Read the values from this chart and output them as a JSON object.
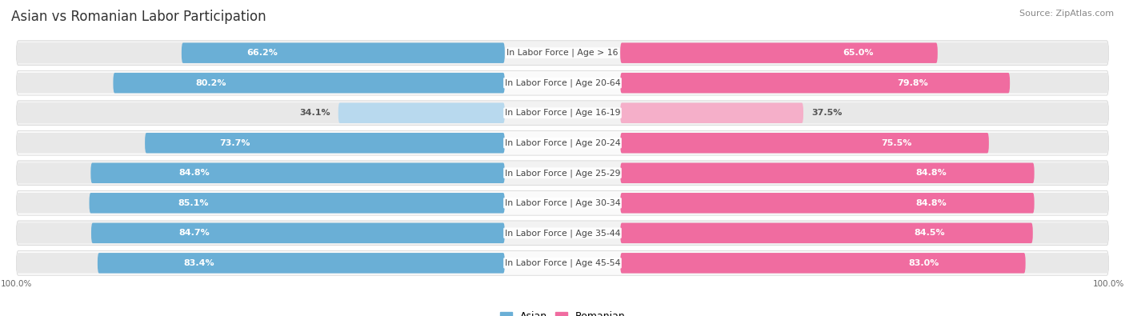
{
  "title": "Asian vs Romanian Labor Participation",
  "source": "Source: ZipAtlas.com",
  "categories": [
    "In Labor Force | Age > 16",
    "In Labor Force | Age 20-64",
    "In Labor Force | Age 16-19",
    "In Labor Force | Age 20-24",
    "In Labor Force | Age 25-29",
    "In Labor Force | Age 30-34",
    "In Labor Force | Age 35-44",
    "In Labor Force | Age 45-54"
  ],
  "asian_values": [
    66.2,
    80.2,
    34.1,
    73.7,
    84.8,
    85.1,
    84.7,
    83.4
  ],
  "romanian_values": [
    65.0,
    79.8,
    37.5,
    75.5,
    84.8,
    84.8,
    84.5,
    83.0
  ],
  "asian_color_strong": "#6aafd6",
  "asian_color_light": "#b8d9ee",
  "romanian_color_strong": "#f06ca0",
  "romanian_color_light": "#f5afc9",
  "track_color": "#e8e8e8",
  "row_bg_odd": "#f2f2f2",
  "row_bg_even": "#fafafa",
  "max_value": 100.0,
  "bar_height": 0.68,
  "title_fontsize": 12,
  "label_fontsize": 8.0,
  "category_fontsize": 7.8,
  "legend_fontsize": 9,
  "source_fontsize": 8,
  "threshold_light": 45
}
